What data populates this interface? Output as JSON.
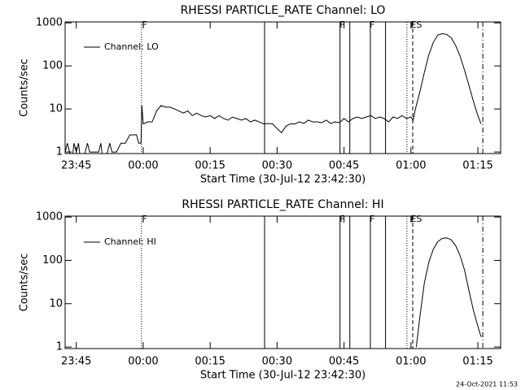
{
  "chart_data": [
    {
      "type": "line",
      "title": "RHESSI PARTICLE_RATE Channel: LO",
      "xlabel": "Start Time (30-Jul-12 23:42:30)",
      "ylabel": "Counts/sec",
      "log_y": true,
      "legend": "upper left",
      "xlim": [
        -17.5,
        80.1
      ],
      "ylim": [
        0.92,
        1050
      ],
      "xticks": [
        {
          "value": -15,
          "label": "23:45"
        },
        {
          "value": 0,
          "label": "00:00"
        },
        {
          "value": 15,
          "label": "00:15"
        },
        {
          "value": 30,
          "label": "00:30"
        },
        {
          "value": 45,
          "label": "00:45"
        },
        {
          "value": 60,
          "label": "01:00"
        },
        {
          "value": 75,
          "label": "01:15"
        }
      ],
      "yticks": [
        1,
        10,
        100,
        1000
      ],
      "vlines": [
        {
          "x": -0.4,
          "style": "dotted"
        },
        {
          "x": 27.2,
          "style": "solid"
        },
        {
          "x": 44.1,
          "style": "solid"
        },
        {
          "x": 46.3,
          "style": "solid"
        },
        {
          "x": 50.9,
          "style": "solid"
        },
        {
          "x": 54.3,
          "style": "solid"
        },
        {
          "x": 59.1,
          "style": "dotted"
        },
        {
          "x": 60.4,
          "style": "dashed"
        },
        {
          "x": 76.1,
          "style": "dashdot"
        }
      ],
      "annotations": [
        {
          "text": "F",
          "x": 0.3
        },
        {
          "text": "F",
          "x": 44.6
        },
        {
          "text": "F",
          "x": 51.3
        },
        {
          "text": "ES",
          "x": 61.2
        }
      ],
      "series": [
        {
          "name": "Channel: LO",
          "color": "#000000",
          "x": [
            -17.5,
            -17,
            -16.5,
            -16,
            -15.5,
            -15,
            -14.5,
            -14,
            -13,
            -12.5,
            -12,
            -10,
            -9.5,
            -9,
            -8,
            -7.5,
            -7,
            -6,
            -5,
            -4,
            -3,
            -1.5,
            -1,
            -0.5,
            -0.3,
            0,
            1,
            2,
            3,
            4,
            5,
            6,
            7,
            8,
            9,
            10,
            11,
            12,
            13,
            14,
            15,
            16,
            17,
            18,
            19,
            20,
            21,
            22,
            23,
            24,
            25,
            26,
            27,
            28,
            29,
            30,
            31,
            32,
            33,
            34,
            35,
            36,
            37,
            38,
            39,
            40,
            41,
            42,
            43,
            44,
            45,
            46,
            47,
            48,
            49,
            50,
            51,
            52,
            53,
            54,
            55,
            56,
            57,
            58,
            59,
            60,
            60.5,
            61,
            62,
            63,
            64,
            65,
            66,
            67,
            68,
            69,
            70,
            71,
            72,
            73,
            74,
            75,
            75.7
          ],
          "values": [
            1,
            1.6,
            1,
            0.6,
            1.6,
            1,
            1.6,
            0.6,
            1,
            1.6,
            1,
            1,
            1.6,
            0.6,
            1,
            1.6,
            1,
            1,
            1.6,
            1.6,
            2.5,
            2.5,
            1.6,
            1.6,
            12,
            4.5,
            5,
            5,
            9,
            12,
            11,
            11,
            10,
            9,
            8,
            9,
            7,
            8,
            7,
            6.5,
            7,
            6,
            7,
            6,
            5.5,
            6.5,
            6,
            5.5,
            6,
            5,
            5.5,
            5,
            4.5,
            4.6,
            4.5,
            3.5,
            2.8,
            4,
            4.5,
            4.5,
            5,
            4.6,
            5.5,
            5,
            5,
            4.8,
            5.5,
            4.6,
            5,
            4.8,
            6,
            5,
            6,
            6.5,
            6,
            6.5,
            7,
            6,
            6.5,
            6,
            5,
            6.5,
            6,
            7,
            6,
            6.5,
            5.5,
            10,
            25,
            70,
            180,
            350,
            520,
            560,
            540,
            450,
            300,
            170,
            80,
            35,
            15,
            7,
            4.5
          ]
        }
      ]
    },
    {
      "type": "line",
      "title": "RHESSI PARTICLE_RATE Channel: HI",
      "xlabel": "Start Time (30-Jul-12 23:42:30)",
      "ylabel": "Counts/sec",
      "log_y": true,
      "legend": "upper left",
      "xlim": [
        -17.5,
        80.1
      ],
      "ylim": [
        0.92,
        1050
      ],
      "xticks": [
        {
          "value": -15,
          "label": "23:45"
        },
        {
          "value": 0,
          "label": "00:00"
        },
        {
          "value": 15,
          "label": "00:15"
        },
        {
          "value": 30,
          "label": "00:30"
        },
        {
          "value": 45,
          "label": "00:45"
        },
        {
          "value": 60,
          "label": "01:00"
        },
        {
          "value": 75,
          "label": "01:15"
        }
      ],
      "yticks": [
        1,
        10,
        100,
        1000
      ],
      "vlines": [
        {
          "x": -0.4,
          "style": "dotted"
        },
        {
          "x": 27.2,
          "style": "solid"
        },
        {
          "x": 44.1,
          "style": "solid"
        },
        {
          "x": 46.3,
          "style": "solid"
        },
        {
          "x": 50.9,
          "style": "solid"
        },
        {
          "x": 54.3,
          "style": "solid"
        },
        {
          "x": 59.1,
          "style": "dotted"
        },
        {
          "x": 60.4,
          "style": "dashed"
        },
        {
          "x": 76.1,
          "style": "dashdot"
        }
      ],
      "annotations": [
        {
          "text": "F",
          "x": 0.3
        },
        {
          "text": "F",
          "x": 44.6
        },
        {
          "text": "F",
          "x": 51.3
        },
        {
          "text": "ES",
          "x": 61.2
        }
      ],
      "series": [
        {
          "name": "Channel: HI",
          "color": "#000000",
          "x": [
            61.2,
            62,
            63,
            64,
            65,
            66,
            67,
            68,
            69,
            70,
            71,
            72,
            73,
            74,
            75,
            75.5,
            75.8
          ],
          "values": [
            1,
            5,
            30,
            90,
            180,
            270,
            320,
            330,
            300,
            220,
            130,
            60,
            20,
            7,
            3,
            2,
            1.7
          ]
        }
      ]
    }
  ],
  "footer": "24-Oct-2021 11:53"
}
